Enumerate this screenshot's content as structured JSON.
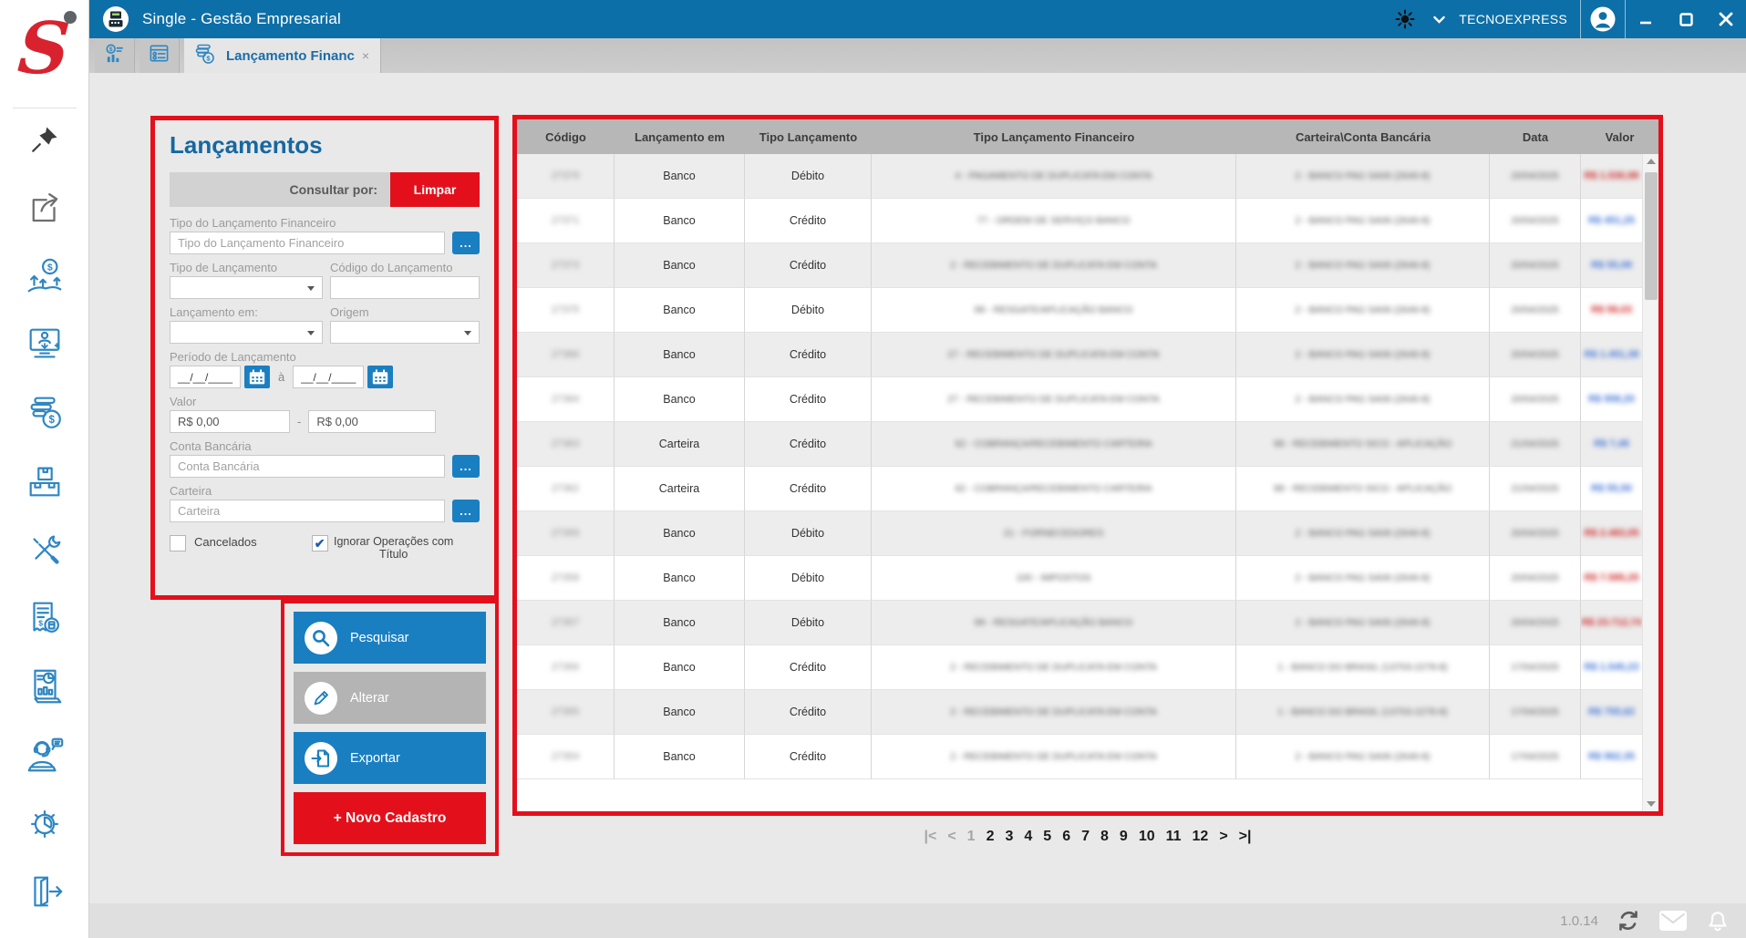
{
  "titlebar": {
    "title": "Single - Gestão Empresarial",
    "account": "TECNOEXPRESS"
  },
  "tabs": {
    "items": [
      {
        "id": "financeiro-resumo",
        "icon": "chart-dollar",
        "label": "",
        "active": false
      },
      {
        "id": "cadastros-lista",
        "icon": "window-list",
        "label": "",
        "active": false
      },
      {
        "id": "lancamento-financeiro",
        "icon": "coins-tab",
        "label": "Lançamento Financ",
        "close": "×",
        "active": true
      }
    ]
  },
  "sidebar": {
    "logo_text": "S",
    "icons": [
      "pin",
      "share",
      "money-growth",
      "computer-user",
      "coins-money",
      "inventory",
      "tools",
      "invoice",
      "report",
      "support",
      "settings",
      "logout"
    ]
  },
  "filter": {
    "title": "Lançamentos",
    "consultar_label": "Consultar por:",
    "limpar_label": "Limpar",
    "browse_label": "...",
    "fields": {
      "tipo_financeiro": {
        "label": "Tipo do Lançamento Financeiro",
        "placeholder": "Tipo do Lançamento Financeiro"
      },
      "tipo_lancamento": {
        "label": "Tipo de Lançamento"
      },
      "codigo": {
        "label": "Código do Lançamento"
      },
      "lancamento_em": {
        "label": "Lançamento em:"
      },
      "origem": {
        "label": "Origem"
      },
      "periodo": {
        "label": "Período de Lançamento",
        "mask": "__/__/____",
        "until_label": "à"
      },
      "valor": {
        "label": "Valor",
        "from": "R$ 0,00",
        "to": "R$ 0,00",
        "separator": "-"
      },
      "conta": {
        "label": "Conta Bancária",
        "placeholder": "Conta Bancária"
      },
      "carteira": {
        "label": "Carteira",
        "placeholder": "Carteira"
      },
      "cancelados": {
        "label": "Cancelados",
        "checked": false
      },
      "ignorar": {
        "label": "Ignorar Operações com Título",
        "checked": true,
        "check_glyph": "✔"
      }
    }
  },
  "actions": {
    "items": [
      {
        "label": "Pesquisar",
        "style": "blue",
        "icon": "search"
      },
      {
        "label": "Alterar",
        "style": "gray",
        "icon": "pencil"
      },
      {
        "label": "Exportar",
        "style": "blue",
        "icon": "export"
      },
      {
        "label": "+ Novo Cadastro",
        "style": "red",
        "icon": ""
      }
    ]
  },
  "table": {
    "columns": [
      "Código",
      "Lançamento em",
      "Tipo Lançamento",
      "Tipo Lançamento Financeiro",
      "Carteira\\Conta Bancária",
      "Data",
      "Valor"
    ],
    "blurred_note": "codigo, descricao, conta, data and valor columns are blurred in source",
    "rows": [
      {
        "codigo": "27379",
        "em": "Banco",
        "tipo": "Débito",
        "descricao": "4 - PAGAMENTO DE DUPLICATA EM CONTA",
        "conta": "2 - BANCO PAG SA06 (2646-8)",
        "data": "20/04/2025",
        "valor": "R$ 1.530,98",
        "valor_tipo": "deb"
      },
      {
        "codigo": "27371",
        "em": "Banco",
        "tipo": "Crédito",
        "descricao": "77 - ORDEM DE SERVIÇO BANCO",
        "conta": "2 - BANCO PAG SA06 (2646-8)",
        "data": "20/04/2025",
        "valor": "R$ 451,25",
        "valor_tipo": "cre"
      },
      {
        "codigo": "27373",
        "em": "Banco",
        "tipo": "Crédito",
        "descricao": "2 - RECEBIMENTO DE DUPLICATA EM CONTA",
        "conta": "2 - BANCO PAG SA06 (2646-8)",
        "data": "20/04/2025",
        "valor": "R$ 55,08",
        "valor_tipo": "cre"
      },
      {
        "codigo": "27375",
        "em": "Banco",
        "tipo": "Débito",
        "descricao": "99 - RESGATE/APLICAÇÃO BANCO",
        "conta": "2 - BANCO PAG SA06 (2646-8)",
        "data": "20/04/2025",
        "valor": "R$ 58,03",
        "valor_tipo": "deb"
      },
      {
        "codigo": "27366",
        "em": "Banco",
        "tipo": "Crédito",
        "descricao": "27 - RECEBIMENTO DE DUPLICATA EM CONTA",
        "conta": "2 - BANCO PAG SA06 (2646-8)",
        "data": "20/04/2025",
        "valor": "R$ 1.451,38",
        "valor_tipo": "cre"
      },
      {
        "codigo": "27364",
        "em": "Banco",
        "tipo": "Crédito",
        "descricao": "27 - RECEBIMENTO DE DUPLICATA EM CONTA",
        "conta": "2 - BANCO PAG SA06 (2646-8)",
        "data": "20/04/2025",
        "valor": "R$ 958,20",
        "valor_tipo": "cre"
      },
      {
        "codigo": "27363",
        "em": "Carteira",
        "tipo": "Crédito",
        "descricao": "62 - COBRANÇA/RECEBIMENTO CARTEIRA",
        "conta": "98 - RECEBIMENTO SICO - APLICAÇÃO",
        "data": "21/04/2025",
        "valor": "R$ 7,48",
        "valor_tipo": "cre"
      },
      {
        "codigo": "27362",
        "em": "Carteira",
        "tipo": "Crédito",
        "descricao": "62 - COBRANÇA/RECEBIMENTO CARTEIRA",
        "conta": "98 - RECEBIMENTO SICO - APLICAÇÃO",
        "data": "21/04/2025",
        "valor": "R$ 55,50",
        "valor_tipo": "cre"
      },
      {
        "codigo": "27359",
        "em": "Banco",
        "tipo": "Débito",
        "descricao": "21 - FORNECEDORES",
        "conta": "2 - BANCO PAG SA06 (2646-8)",
        "data": "20/04/2025",
        "valor": "R$ 2.483,05",
        "valor_tipo": "deb"
      },
      {
        "codigo": "27358",
        "em": "Banco",
        "tipo": "Débito",
        "descricao": "100 - IMPOSTOS",
        "conta": "2 - BANCO PAG SA06 (2646-8)",
        "data": "20/04/2025",
        "valor": "R$ 7.585,25",
        "valor_tipo": "deb"
      },
      {
        "codigo": "27357",
        "em": "Banco",
        "tipo": "Débito",
        "descricao": "99 - RESGATE/APLICAÇÃO BANCO",
        "conta": "2 - BANCO PAG SA06 (2646-8)",
        "data": "20/04/2025",
        "valor": "R$ 23.712,74",
        "valor_tipo": "deb"
      },
      {
        "codigo": "27356",
        "em": "Banco",
        "tipo": "Crédito",
        "descricao": "2 - RECEBIMENTO DE DUPLICATA EM CONTA",
        "conta": "1 - BANCO DO BRASIL (13703-2278-8)",
        "data": "17/04/2025",
        "valor": "R$ 1.545,23",
        "valor_tipo": "cre"
      },
      {
        "codigo": "27355",
        "em": "Banco",
        "tipo": "Crédito",
        "descricao": "2 - RECEBIMENTO DE DUPLICATA EM CONTA",
        "conta": "1 - BANCO DO BRASIL (13703-2278-8)",
        "data": "17/04/2025",
        "valor": "R$ 755,62",
        "valor_tipo": "cre"
      },
      {
        "codigo": "27354",
        "em": "Banco",
        "tipo": "Crédito",
        "descricao": "2 - RECEBIMENTO DE DUPLICATA EM CONTA",
        "conta": "2 - BANCO PAG SA06 (2646-8)",
        "data": "17/04/2025",
        "valor": "R$ 962,35",
        "valor_tipo": "cre"
      }
    ]
  },
  "pagination": {
    "items": [
      {
        "label": "|<",
        "muted": true
      },
      {
        "label": "<",
        "muted": true
      },
      {
        "label": "1",
        "muted": true
      },
      {
        "label": "2",
        "muted": false
      },
      {
        "label": "3",
        "muted": false
      },
      {
        "label": "4",
        "muted": false
      },
      {
        "label": "5",
        "muted": false
      },
      {
        "label": "6",
        "muted": false
      },
      {
        "label": "7",
        "muted": false
      },
      {
        "label": "8",
        "muted": false
      },
      {
        "label": "9",
        "muted": false
      },
      {
        "label": "10",
        "muted": false
      },
      {
        "label": "11",
        "muted": false
      },
      {
        "label": "12",
        "muted": false
      },
      {
        "label": ">",
        "muted": false
      },
      {
        "label": ">|",
        "muted": false
      }
    ]
  },
  "statusbar": {
    "version": "1.0.14"
  }
}
